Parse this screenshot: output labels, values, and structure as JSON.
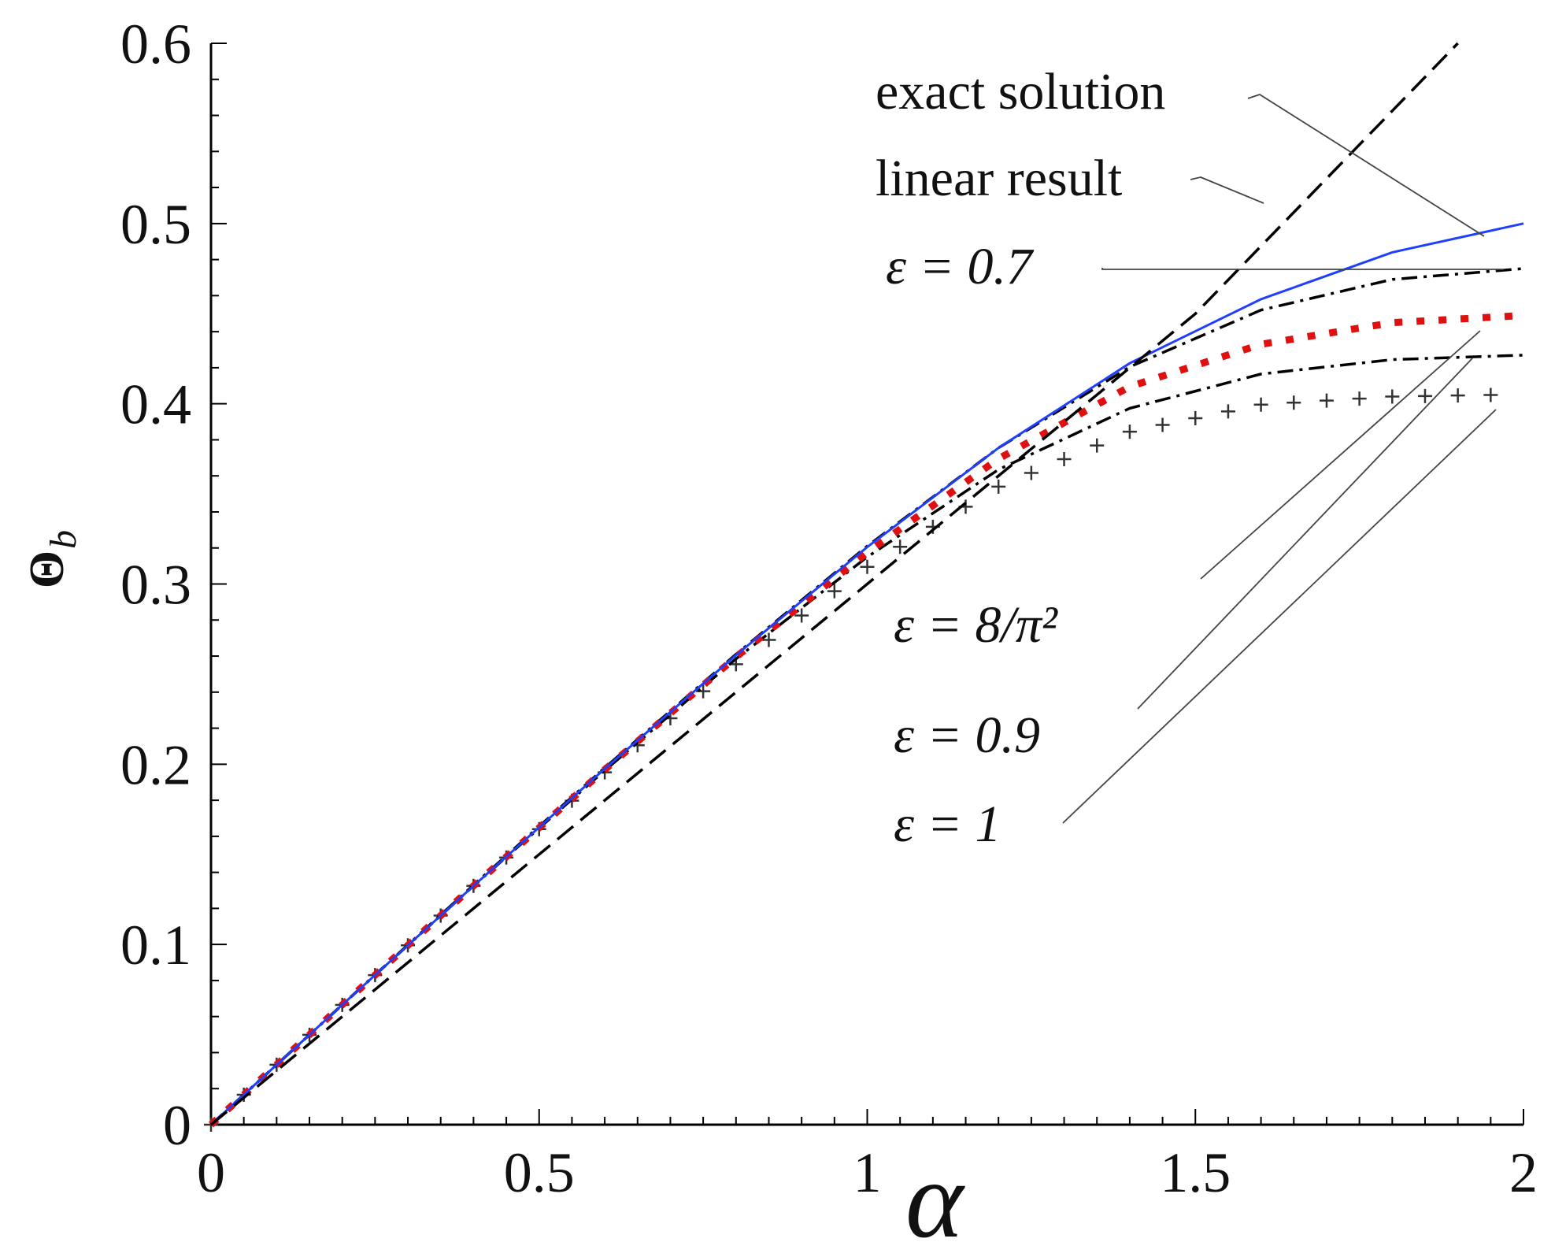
{
  "chart_data": {
    "type": "line",
    "xlabel": "α",
    "ylabel": {
      "main": "Θ",
      "sub": "b"
    },
    "xlim": [
      0,
      2
    ],
    "ylim": [
      0,
      0.6
    ],
    "x_ticks": [
      "0",
      "0.5",
      "1",
      "1.5",
      "2"
    ],
    "y_ticks": [
      "0",
      "0.1",
      "0.2",
      "0.3",
      "0.4",
      "0.5",
      "0.6"
    ],
    "x_tick_values": [
      0,
      0.5,
      1,
      1.5,
      2
    ],
    "y_tick_values": [
      0,
      0.1,
      0.2,
      0.3,
      0.4,
      0.5,
      0.6
    ],
    "grid": false,
    "series": [
      {
        "name": "linear result",
        "style": "dashed",
        "color": "#000000",
        "x": [
          0,
          0.5,
          1.0,
          1.5,
          1.9
        ],
        "y": [
          0,
          0.15,
          0.3,
          0.45,
          0.6
        ]
      },
      {
        "name": "exact solution",
        "style": "solid",
        "color": "#1f3fff",
        "x": [
          0,
          0.2,
          0.4,
          0.6,
          0.8,
          1.0,
          1.2,
          1.4,
          1.6,
          1.8,
          2.0
        ],
        "y": [
          0,
          0.0665,
          0.1325,
          0.1975,
          0.2605,
          0.3205,
          0.3755,
          0.4225,
          0.458,
          0.484,
          0.5
        ]
      },
      {
        "name": "ε = 0.7",
        "style": "dashdot",
        "color": "#000000",
        "x": [
          0,
          0.2,
          0.4,
          0.6,
          0.8,
          1.0,
          1.2,
          1.4,
          1.6,
          1.8,
          2.0
        ],
        "y": [
          0,
          0.0665,
          0.133,
          0.198,
          0.261,
          0.321,
          0.3755,
          0.4205,
          0.452,
          0.469,
          0.475
        ]
      },
      {
        "name": "ε = 8/π²",
        "style": "dotted",
        "color": "#e01010",
        "x": [
          0,
          0.2,
          0.4,
          0.6,
          0.8,
          1.0,
          1.2,
          1.4,
          1.6,
          1.8,
          2.0
        ],
        "y": [
          0,
          0.0665,
          0.1325,
          0.197,
          0.2595,
          0.3175,
          0.3695,
          0.4095,
          0.433,
          0.445,
          0.449
        ]
      },
      {
        "name": "ε = 0.9",
        "style": "dashdot",
        "color": "#000000",
        "x": [
          0,
          0.2,
          0.4,
          0.6,
          0.8,
          1.0,
          1.2,
          1.4,
          1.6,
          1.8,
          2.0
        ],
        "y": [
          0,
          0.0665,
          0.1325,
          0.1965,
          0.2585,
          0.315,
          0.3635,
          0.3975,
          0.4165,
          0.4245,
          0.427
        ]
      },
      {
        "name": "ε = 1",
        "style": "plus",
        "color": "#333333",
        "x": [
          0,
          0.2,
          0.4,
          0.6,
          0.8,
          1.0,
          1.2,
          1.4,
          1.6,
          1.8,
          1.97
        ],
        "y": [
          0,
          0.0665,
          0.1325,
          0.1955,
          0.2555,
          0.3095,
          0.354,
          0.3845,
          0.3995,
          0.404,
          0.405
        ]
      }
    ],
    "annotations": [
      {
        "text": "exact solution",
        "points_to": "exact solution"
      },
      {
        "text": "linear result",
        "points_to": "linear result"
      },
      {
        "text": "ε = 0.7",
        "points_to": "ε = 0.7"
      },
      {
        "text": "ε = 8/π²",
        "points_to": "ε = 8/π²"
      },
      {
        "text": "ε = 0.9",
        "points_to": "ε = 0.9"
      },
      {
        "text": "ε = 1",
        "points_to": "ε = 1"
      }
    ]
  }
}
